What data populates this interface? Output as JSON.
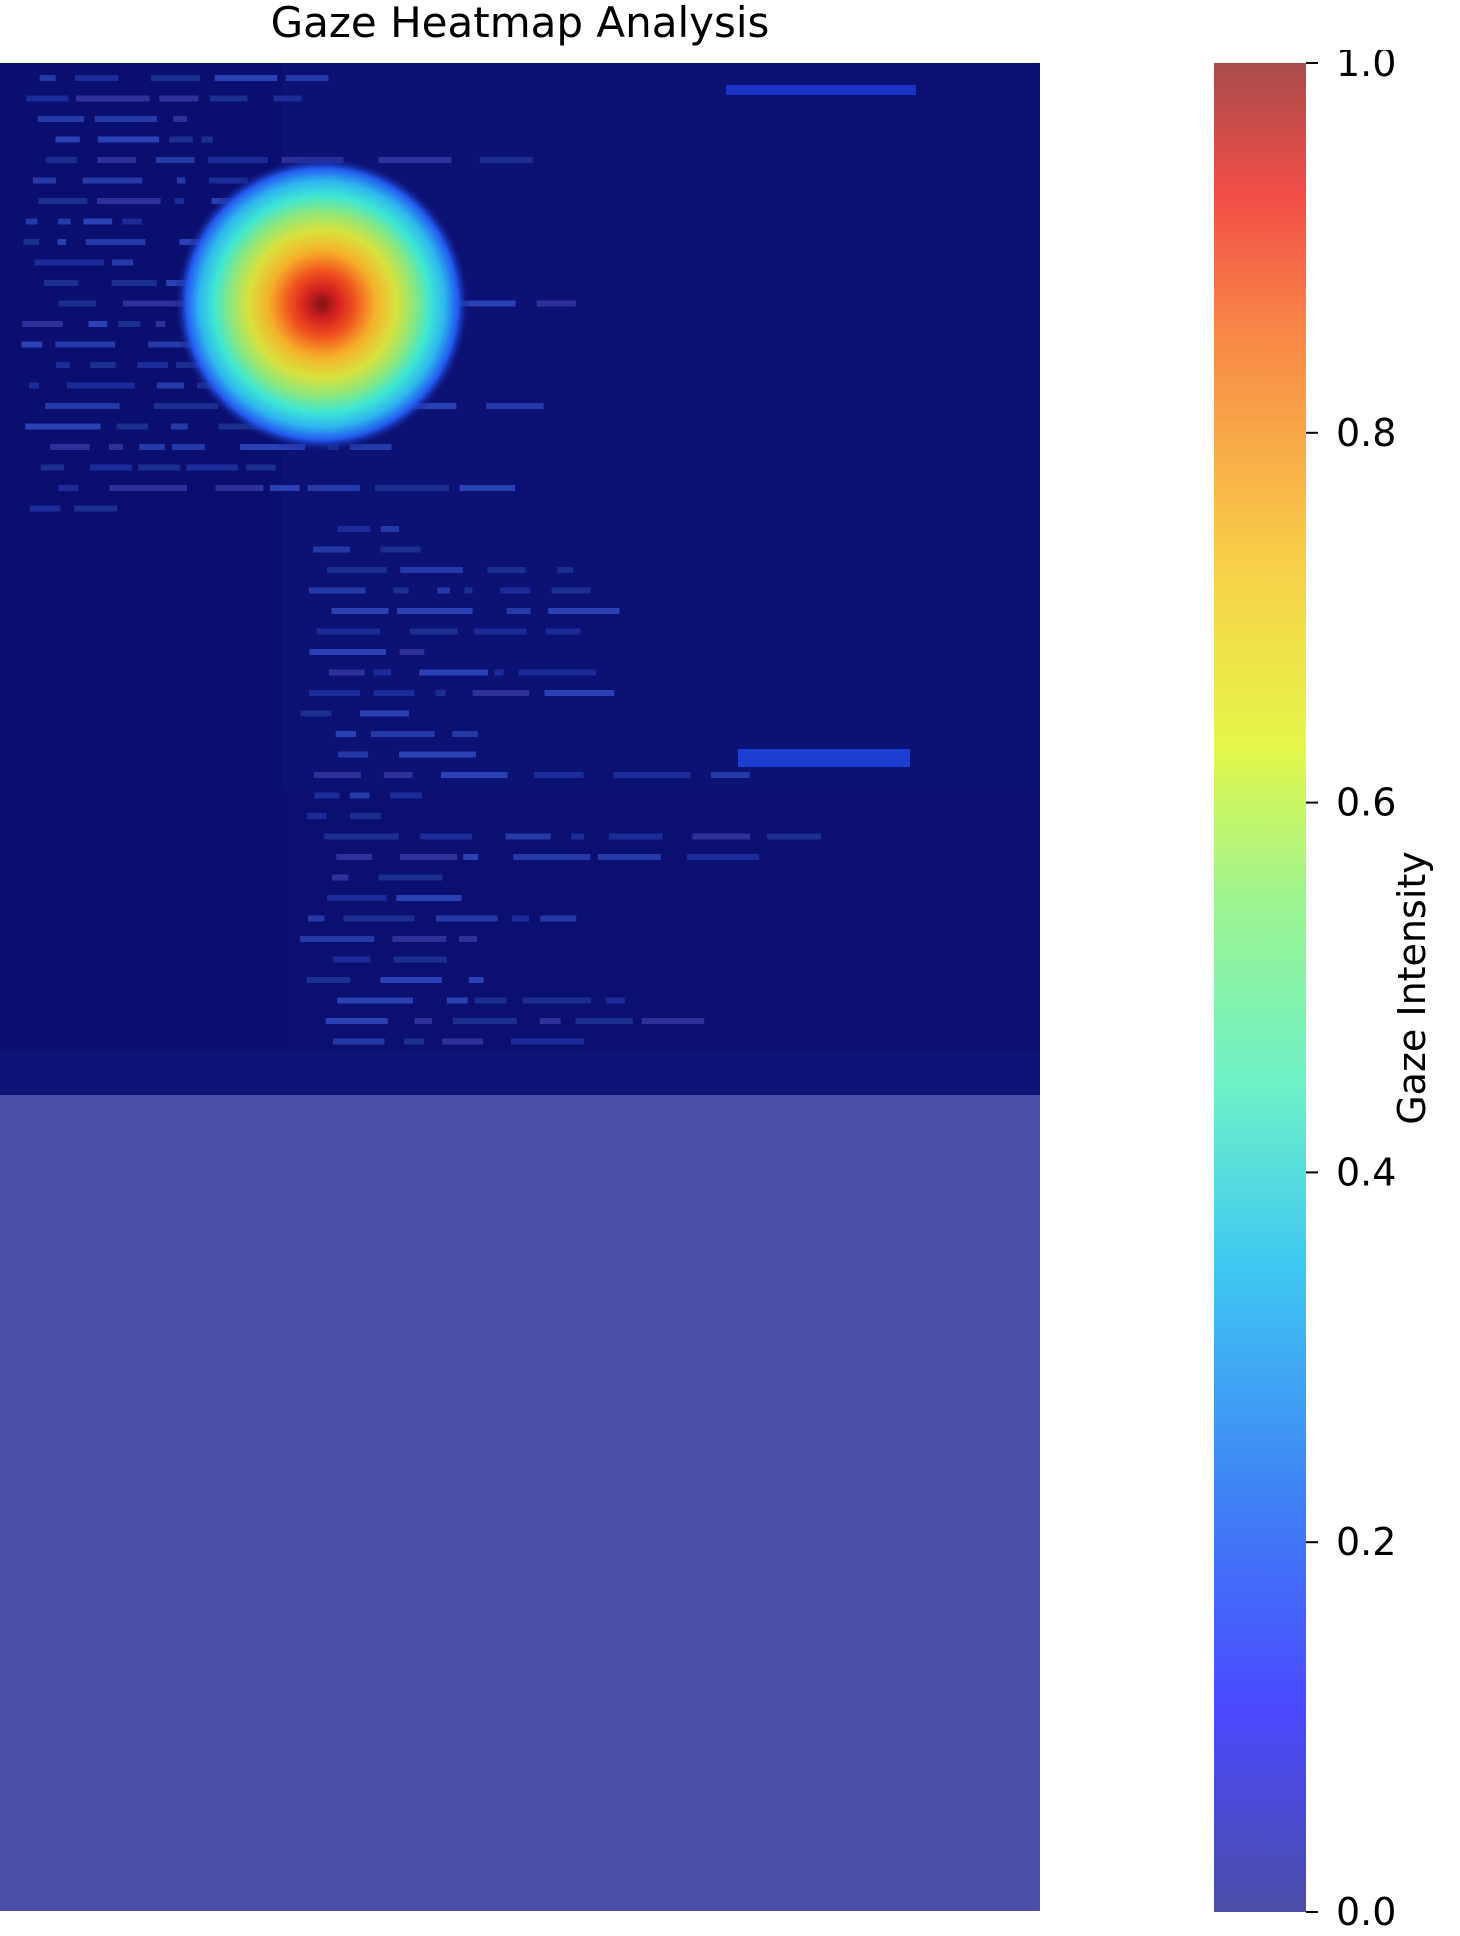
{
  "chart_data": {
    "type": "heatmap",
    "title": "Gaze Heatmap Analysis",
    "colorbar": {
      "label": "Gaze Intensity",
      "range": [
        0.0,
        1.0
      ],
      "ticks": [
        "0.0",
        "0.2",
        "0.4",
        "0.6",
        "0.8",
        "1.0"
      ],
      "colormap": "jet",
      "alpha": 0.7
    },
    "hotspot": {
      "peak_intensity": 1.0,
      "peak_region": "upper-left of screen capture"
    },
    "background": "pixelated screenshot of a dark code editor",
    "axes_visible": false,
    "grid": false,
    "legend": "none"
  }
}
